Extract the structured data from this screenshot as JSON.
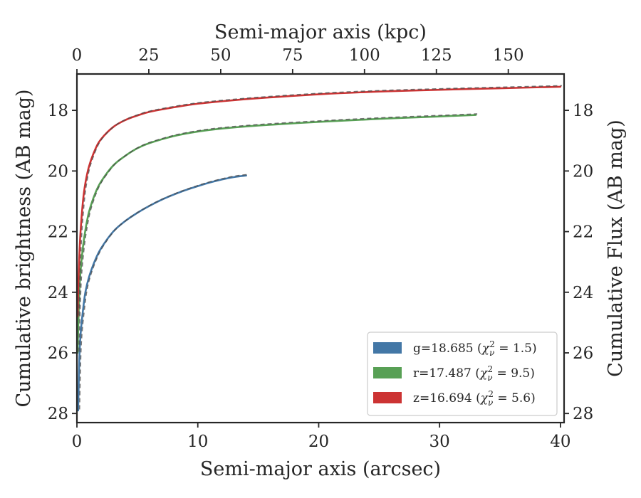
{
  "chart_data": {
    "type": "line",
    "xlabel": "Semi-major axis (arcsec)",
    "ylabel": "Cumulative brightness (AB mag)",
    "top_xlabel": "Semi-major axis (kpc)",
    "right_ylabel": "Cumulative Flux (AB mag)",
    "xlim": [
      0,
      40.3
    ],
    "ylim": [
      28.3,
      16.8
    ],
    "y_inverted": true,
    "top_xlim": [
      0,
      169.4
    ],
    "x_ticks": [
      "0",
      "10",
      "20",
      "30",
      "40"
    ],
    "x_tick_values": [
      0,
      10,
      20,
      30,
      40
    ],
    "top_x_ticks": [
      "0",
      "25",
      "50",
      "75",
      "100",
      "125",
      "150"
    ],
    "top_x_tick_values": [
      0,
      25,
      50,
      75,
      100,
      125,
      150
    ],
    "y_ticks": [
      "18",
      "20",
      "22",
      "24",
      "26",
      "28"
    ],
    "y_tick_values": [
      18,
      20,
      22,
      24,
      26,
      28
    ],
    "legend_position": "lower-right",
    "grid": false,
    "series": [
      {
        "name": "g",
        "legend_prefix": "g=18.685 (",
        "legend_chi": "χ",
        "legend_sub": "ν",
        "legend_sup": "2",
        "legend_suffix": " = 1.5)",
        "color": "#4377a6",
        "x": [
          0.1,
          0.2,
          0.3,
          0.5,
          0.7,
          1.0,
          1.5,
          2.0,
          3.0,
          4.0,
          5.0,
          6.0,
          7.0,
          8.0,
          9.0,
          10.0,
          11.0,
          12.0,
          13.0,
          14.0
        ],
        "values": [
          27.9,
          26.2,
          25.4,
          24.6,
          24.0,
          23.5,
          22.95,
          22.55,
          22.0,
          21.65,
          21.38,
          21.15,
          20.95,
          20.78,
          20.63,
          20.5,
          20.38,
          20.28,
          20.2,
          20.15
        ]
      },
      {
        "name": "r",
        "legend_prefix": "r=17.487 (",
        "legend_chi": "χ",
        "legend_sub": "ν",
        "legend_sup": "2",
        "legend_suffix": " = 9.5)",
        "color": "#58a055",
        "x": [
          0.05,
          0.1,
          0.2,
          0.3,
          0.5,
          0.7,
          1.0,
          1.5,
          2.0,
          3.0,
          4.0,
          5.0,
          6.0,
          8.0,
          10.0,
          12.0,
          15.0,
          20.0,
          25.0,
          30.0,
          33.0
        ],
        "values": [
          26.0,
          25.3,
          24.0,
          23.3,
          22.5,
          21.95,
          21.35,
          20.75,
          20.35,
          19.82,
          19.5,
          19.25,
          19.08,
          18.85,
          18.7,
          18.6,
          18.5,
          18.38,
          18.28,
          18.2,
          18.15
        ]
      },
      {
        "name": "z",
        "legend_prefix": "z=16.694 (",
        "legend_chi": "χ",
        "legend_sub": "ν",
        "legend_sup": "2",
        "legend_suffix": " = 5.6)",
        "color": "#cc3333",
        "x": [
          0.05,
          0.1,
          0.2,
          0.3,
          0.5,
          0.7,
          1.0,
          1.5,
          2.0,
          3.0,
          4.0,
          5.0,
          6.0,
          8.0,
          10.0,
          12.0,
          15.0,
          20.0,
          25.0,
          30.0,
          35.0,
          40.0
        ],
        "values": [
          24.8,
          24.0,
          22.8,
          22.0,
          21.0,
          20.4,
          19.85,
          19.3,
          18.95,
          18.55,
          18.32,
          18.17,
          18.05,
          17.9,
          17.78,
          17.7,
          17.6,
          17.47,
          17.38,
          17.32,
          17.27,
          17.22
        ]
      }
    ]
  }
}
